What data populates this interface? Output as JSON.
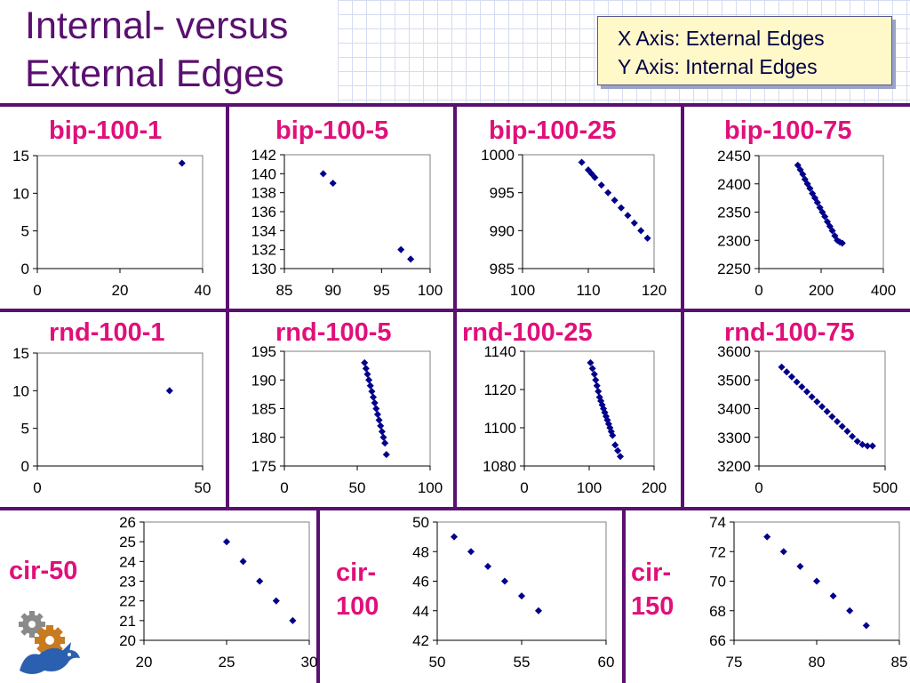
{
  "slide": {
    "title_line1": "Internal- versus",
    "title_line2": "External Edges",
    "legend_x": "X Axis: External Edges",
    "legend_y": "Y Axis: Internal Edges"
  },
  "colors": {
    "title": "#5a1070",
    "label": "#e0107a",
    "marker": "#00008b",
    "divider": "#5a1070",
    "legend_bg": "#fff8c8"
  },
  "labels": {
    "cir50": "cir-50",
    "cir100_a": "cir-",
    "cir100_b": "100",
    "cir150_a": "cir-",
    "cir150_b": "150"
  },
  "chart_data": [
    {
      "id": "bip1",
      "title": "bip-100-1",
      "type": "scatter",
      "xlim": [
        0,
        40
      ],
      "ylim": [
        0,
        15
      ],
      "xticks": [
        "0",
        "20",
        "40"
      ],
      "yticks": [
        "0",
        "5",
        "10",
        "15"
      ],
      "x": [
        35
      ],
      "y": [
        14
      ]
    },
    {
      "id": "bip5",
      "title": "bip-100-5",
      "type": "scatter",
      "xlim": [
        85,
        100
      ],
      "ylim": [
        130,
        142
      ],
      "xticks": [
        "85",
        "90",
        "95",
        "100"
      ],
      "yticks": [
        "130",
        "132",
        "134",
        "136",
        "138",
        "140",
        "142"
      ],
      "x": [
        89,
        90,
        97,
        98
      ],
      "y": [
        140,
        139,
        132,
        131
      ]
    },
    {
      "id": "bip25",
      "title": "bip-100-25",
      "type": "scatter",
      "xlim": [
        100,
        120
      ],
      "ylim": [
        985,
        1000
      ],
      "xticks": [
        "100",
        "110",
        "120"
      ],
      "yticks": [
        "985",
        "990",
        "995",
        "1000"
      ],
      "x": [
        109,
        110,
        110.5,
        111,
        112,
        113,
        114,
        115,
        116,
        117,
        118,
        119
      ],
      "y": [
        999,
        998,
        997.5,
        997,
        996,
        995,
        994,
        993,
        992,
        991,
        990,
        989
      ]
    },
    {
      "id": "bip75",
      "title": "bip-100-75",
      "type": "scatter",
      "xlim": [
        0,
        400
      ],
      "ylim": [
        2250,
        2450
      ],
      "xticks": [
        "0",
        "200",
        "400"
      ],
      "yticks": [
        "2250",
        "2300",
        "2350",
        "2400",
        "2450"
      ],
      "x": [
        125,
        133,
        141,
        148,
        156,
        164,
        172,
        180,
        188,
        196,
        204,
        212,
        220,
        228,
        236,
        244,
        252,
        260,
        268
      ],
      "y": [
        2433,
        2425,
        2417,
        2408,
        2400,
        2392,
        2383,
        2375,
        2367,
        2358,
        2350,
        2342,
        2333,
        2325,
        2317,
        2308,
        2300,
        2297,
        2295
      ]
    },
    {
      "id": "rnd1",
      "title": "rnd-100-1",
      "type": "scatter",
      "xlim": [
        0,
        50
      ],
      "ylim": [
        0,
        15
      ],
      "xticks": [
        "0",
        "50"
      ],
      "yticks": [
        "0",
        "5",
        "10",
        "15"
      ],
      "x": [
        40
      ],
      "y": [
        10
      ]
    },
    {
      "id": "rnd5",
      "title": "rnd-100-5",
      "type": "scatter",
      "xlim": [
        0,
        100
      ],
      "ylim": [
        175,
        195
      ],
      "xticks": [
        "0",
        "50",
        "100"
      ],
      "yticks": [
        "175",
        "180",
        "185",
        "190",
        "195"
      ],
      "x": [
        55,
        56,
        57,
        58,
        59,
        60,
        61,
        62,
        63,
        64,
        65,
        66,
        67,
        68,
        69,
        70
      ],
      "y": [
        193,
        192,
        191,
        190,
        189,
        188,
        187,
        186,
        185,
        184,
        183,
        182,
        181,
        180,
        179,
        177
      ]
    },
    {
      "id": "rnd25",
      "title": "rnd-100-25",
      "type": "scatter",
      "xlim": [
        0,
        200
      ],
      "ylim": [
        1080,
        1140
      ],
      "xticks": [
        "0",
        "100",
        "200"
      ],
      "yticks": [
        "1080",
        "1100",
        "1120",
        "1140"
      ],
      "x": [
        102,
        105,
        108,
        110,
        112,
        114,
        116,
        118,
        120,
        122,
        124,
        126,
        128,
        130,
        132,
        134,
        136,
        140,
        144,
        148
      ],
      "y": [
        1134,
        1131,
        1128,
        1125,
        1122,
        1119,
        1116,
        1114,
        1112,
        1110,
        1108,
        1106,
        1104,
        1102,
        1100,
        1098,
        1096,
        1091,
        1088,
        1085
      ]
    },
    {
      "id": "rnd75",
      "title": "rnd-100-75",
      "type": "scatter",
      "xlim": [
        0,
        500
      ],
      "ylim": [
        3200,
        3600
      ],
      "xticks": [
        "0",
        "500"
      ],
      "yticks": [
        "3200",
        "3300",
        "3400",
        "3500",
        "3600"
      ],
      "x": [
        90,
        110,
        130,
        150,
        170,
        190,
        210,
        230,
        250,
        270,
        290,
        310,
        330,
        350,
        370,
        390,
        410,
        430,
        450
      ],
      "y": [
        3545,
        3528,
        3511,
        3493,
        3476,
        3459,
        3441,
        3424,
        3407,
        3390,
        3372,
        3355,
        3338,
        3321,
        3303,
        3286,
        3275,
        3270,
        3270
      ]
    },
    {
      "id": "cir50",
      "title": "",
      "type": "scatter",
      "xlim": [
        20,
        30
      ],
      "ylim": [
        20,
        26
      ],
      "xticks": [
        "20",
        "25",
        "30"
      ],
      "yticks": [
        "20",
        "21",
        "22",
        "23",
        "24",
        "25",
        "26"
      ],
      "x": [
        25,
        26,
        27,
        28,
        29
      ],
      "y": [
        25,
        24,
        23,
        22,
        21
      ]
    },
    {
      "id": "cir100",
      "title": "",
      "type": "scatter",
      "xlim": [
        50,
        60
      ],
      "ylim": [
        42,
        50
      ],
      "xticks": [
        "50",
        "55",
        "60"
      ],
      "yticks": [
        "42",
        "44",
        "46",
        "48",
        "50"
      ],
      "x": [
        51,
        52,
        53,
        54,
        55,
        56
      ],
      "y": [
        49,
        48,
        47,
        46,
        45,
        44
      ]
    },
    {
      "id": "cir150",
      "title": "",
      "type": "scatter",
      "xlim": [
        75,
        85
      ],
      "ylim": [
        66,
        74
      ],
      "xticks": [
        "75",
        "80",
        "85"
      ],
      "yticks": [
        "66",
        "68",
        "70",
        "72",
        "74"
      ],
      "x": [
        77,
        78,
        79,
        80,
        81,
        82,
        83
      ],
      "y": [
        73,
        72,
        71,
        70,
        69,
        68,
        67
      ]
    }
  ]
}
